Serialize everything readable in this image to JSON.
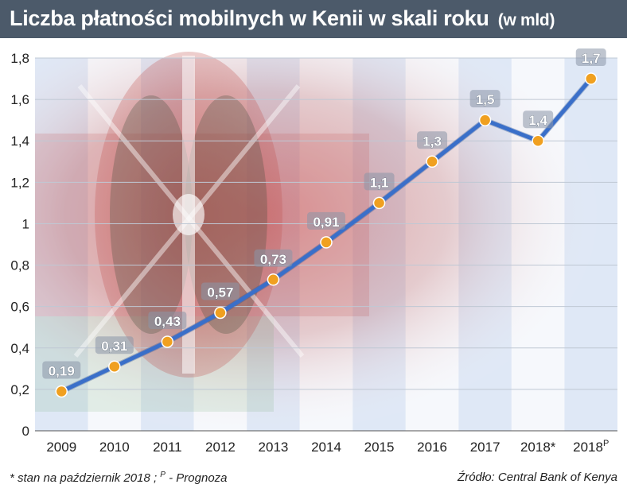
{
  "title": "Liczba płatności mobilnych w Kenii w skali roku",
  "title_unit": "(w mld)",
  "footnote_prefix": "* stan na październik 2018 ; ",
  "footnote_sup": "P",
  "footnote_suffix": " - Prognoza",
  "source": "Źródło: Central Bank of Kenya",
  "colors": {
    "title_bg": "#4c5a6a",
    "line": "#3a6fc9",
    "marker": "#f0a020",
    "label_bg": "#8a96a8",
    "band_light": "#dfe8f6"
  },
  "chart_data": {
    "type": "line",
    "categories": [
      "2009",
      "2010",
      "2011",
      "2012",
      "2013",
      "2014",
      "2015",
      "2016",
      "2017",
      "2018*",
      "2018P"
    ],
    "category_labels": [
      {
        "text": "2009",
        "sup": ""
      },
      {
        "text": "2010",
        "sup": ""
      },
      {
        "text": "2011",
        "sup": ""
      },
      {
        "text": "2012",
        "sup": ""
      },
      {
        "text": "2013",
        "sup": ""
      },
      {
        "text": "2014",
        "sup": ""
      },
      {
        "text": "2015",
        "sup": ""
      },
      {
        "text": "2016",
        "sup": ""
      },
      {
        "text": "2017",
        "sup": ""
      },
      {
        "text": "2018*",
        "sup": ""
      },
      {
        "text": "2018",
        "sup": "P"
      }
    ],
    "values": [
      0.19,
      0.31,
      0.43,
      0.57,
      0.73,
      0.91,
      1.1,
      1.3,
      1.5,
      1.4,
      1.7
    ],
    "data_labels": [
      "0,19",
      "0,31",
      "0,43",
      "0,57",
      "0,73",
      "0,91",
      "1,1",
      "1,3",
      "1,5",
      "1,4",
      "1,7"
    ],
    "yticks": [
      0,
      0.2,
      0.4,
      0.6,
      0.8,
      1,
      1.2,
      1.4,
      1.6,
      1.8
    ],
    "ytick_labels": [
      "0",
      "0,2",
      "0,4",
      "0,6",
      "0,8",
      "1",
      "1,2",
      "1,4",
      "1,6",
      "1,8"
    ],
    "ylim": [
      0,
      1.8
    ],
    "grid": true,
    "legend": "none"
  }
}
